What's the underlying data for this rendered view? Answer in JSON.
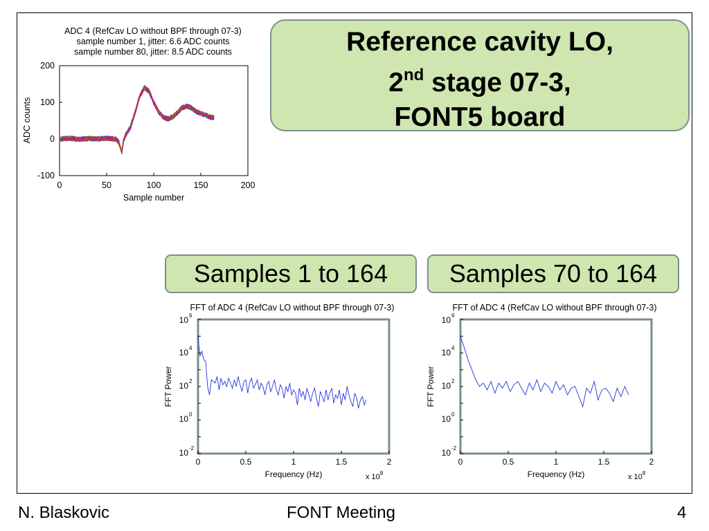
{
  "slide": {
    "title_line1": "Reference cavity LO,",
    "title_line2_pre": "2",
    "title_line2_sup": "nd",
    "title_line2_post": " stage 07-3,",
    "title_line3": "FONT5 board",
    "label_left": "Samples 1 to 164",
    "label_right": "Samples 70 to 164"
  },
  "footer": {
    "author": "N. Blaskovic",
    "meeting": "FONT Meeting",
    "page": "4"
  },
  "chart_data": [
    {
      "type": "line",
      "title": [
        "ADC 4 (RefCav LO without BPF through 07-3)",
        "sample number 1, jitter: 6.6 ADC counts",
        "sample number 80, jitter: 8.5 ADC counts"
      ],
      "xlabel": "Sample number",
      "ylabel": "ADC counts",
      "xlim": [
        0,
        200
      ],
      "ylim": [
        -100,
        200
      ],
      "xticks": [
        "0",
        "50",
        "100",
        "150",
        "200"
      ],
      "yticks": [
        "-100",
        "0",
        "100",
        "200"
      ],
      "x": [
        0,
        10,
        20,
        30,
        40,
        50,
        60,
        63,
        66,
        68,
        70,
        75,
        80,
        85,
        90,
        95,
        100,
        105,
        110,
        115,
        120,
        125,
        130,
        135,
        140,
        145,
        150,
        155,
        160,
        164
      ],
      "series_mean": [
        0,
        2,
        -1,
        1,
        0,
        2,
        0,
        -10,
        -35,
        -5,
        10,
        30,
        70,
        115,
        140,
        130,
        100,
        75,
        60,
        55,
        60,
        72,
        85,
        90,
        85,
        75,
        70,
        65,
        60,
        58
      ],
      "series_spread": 14
    },
    {
      "type": "line",
      "title": "FFT of ADC 4 (RefCav LO without BPF through 07-3)",
      "xlabel": "Frequency (Hz)",
      "ylabel": "FFT Power",
      "x_multiplier": "x 10^8",
      "xlim": [
        0,
        2
      ],
      "ylog_exponent_range": [
        -2,
        6
      ],
      "xticks": [
        "0",
        "0.5",
        "1",
        "1.5",
        "2"
      ],
      "yticks_exp": [
        "-2",
        "0",
        "2",
        "4",
        "6"
      ],
      "x": [
        0.0,
        0.02,
        0.04,
        0.06,
        0.08,
        0.1,
        0.12,
        0.14,
        0.16,
        0.18,
        0.2,
        0.22,
        0.24,
        0.26,
        0.28,
        0.3,
        0.32,
        0.34,
        0.36,
        0.38,
        0.4,
        0.42,
        0.44,
        0.46,
        0.48,
        0.5,
        0.52,
        0.54,
        0.56,
        0.58,
        0.6,
        0.62,
        0.64,
        0.66,
        0.68,
        0.7,
        0.72,
        0.74,
        0.76,
        0.78,
        0.8,
        0.82,
        0.84,
        0.86,
        0.88,
        0.9,
        0.92,
        0.94,
        0.96,
        0.98,
        1.0,
        1.02,
        1.04,
        1.06,
        1.08,
        1.1,
        1.12,
        1.14,
        1.16,
        1.18,
        1.2,
        1.22,
        1.24,
        1.26,
        1.28,
        1.3,
        1.32,
        1.34,
        1.36,
        1.38,
        1.4,
        1.42,
        1.44,
        1.46,
        1.48,
        1.5,
        1.52,
        1.54,
        1.56,
        1.58,
        1.6,
        1.62,
        1.64,
        1.66,
        1.68,
        1.7,
        1.72,
        1.74,
        1.76
      ],
      "log10_power": [
        5.0,
        3.8,
        4.1,
        3.6,
        3.5,
        2.0,
        1.5,
        2.4,
        2.3,
        2.2,
        2.6,
        1.8,
        2.5,
        2.1,
        2.3,
        2.0,
        2.5,
        2.2,
        1.9,
        2.4,
        2.0,
        2.6,
        2.1,
        1.7,
        2.3,
        2.4,
        1.6,
        2.2,
        2.5,
        1.9,
        2.1,
        2.4,
        1.8,
        2.2,
        2.0,
        1.5,
        2.1,
        2.3,
        1.7,
        2.0,
        2.4,
        1.8,
        1.5,
        2.1,
        1.9,
        1.3,
        2.0,
        1.7,
        2.2,
        1.5,
        1.8,
        1.6,
        0.9,
        1.9,
        1.4,
        1.7,
        1.2,
        1.9,
        1.5,
        1.1,
        1.6,
        1.9,
        1.3,
        0.8,
        1.7,
        1.4,
        1.1,
        1.8,
        1.2,
        1.6,
        1.9,
        1.0,
        1.5,
        1.3,
        1.8,
        0.9,
        1.6,
        1.2,
        2.0,
        1.5,
        1.1,
        0.8,
        1.6,
        1.3,
        0.7,
        1.2,
        1.4,
        0.9,
        1.2
      ]
    },
    {
      "type": "line",
      "title": "FFT of ADC 4 (RefCav LO without BPF through 07-3)",
      "xlabel": "Frequency (Hz)",
      "ylabel": "FFT Power",
      "x_multiplier": "x 10^8",
      "xlim": [
        0,
        2
      ],
      "ylog_exponent_range": [
        -2,
        6
      ],
      "xticks": [
        "0",
        "0.5",
        "1",
        "1.5",
        "2"
      ],
      "yticks_exp": [
        "-2",
        "0",
        "2",
        "4",
        "6"
      ],
      "x": [
        0.0,
        0.04,
        0.08,
        0.12,
        0.16,
        0.2,
        0.24,
        0.28,
        0.32,
        0.36,
        0.4,
        0.44,
        0.48,
        0.52,
        0.56,
        0.6,
        0.64,
        0.68,
        0.72,
        0.76,
        0.8,
        0.84,
        0.88,
        0.92,
        0.96,
        1.0,
        1.04,
        1.08,
        1.12,
        1.16,
        1.2,
        1.24,
        1.28,
        1.32,
        1.36,
        1.4,
        1.44,
        1.48,
        1.52,
        1.56,
        1.6,
        1.64,
        1.68,
        1.72,
        1.76
      ],
      "log10_power": [
        5.0,
        4.3,
        3.6,
        3.0,
        2.4,
        2.0,
        2.2,
        1.8,
        2.3,
        1.6,
        2.2,
        1.9,
        2.3,
        1.7,
        2.1,
        2.3,
        1.9,
        1.5,
        2.2,
        1.8,
        2.4,
        1.7,
        2.2,
        2.0,
        1.6,
        2.3,
        1.8,
        2.1,
        1.5,
        1.9,
        2.0,
        1.4,
        0.8,
        1.9,
        1.6,
        2.3,
        1.2,
        1.8,
        1.9,
        1.6,
        1.1,
        1.9,
        1.4,
        2.0,
        1.5
      ]
    }
  ]
}
